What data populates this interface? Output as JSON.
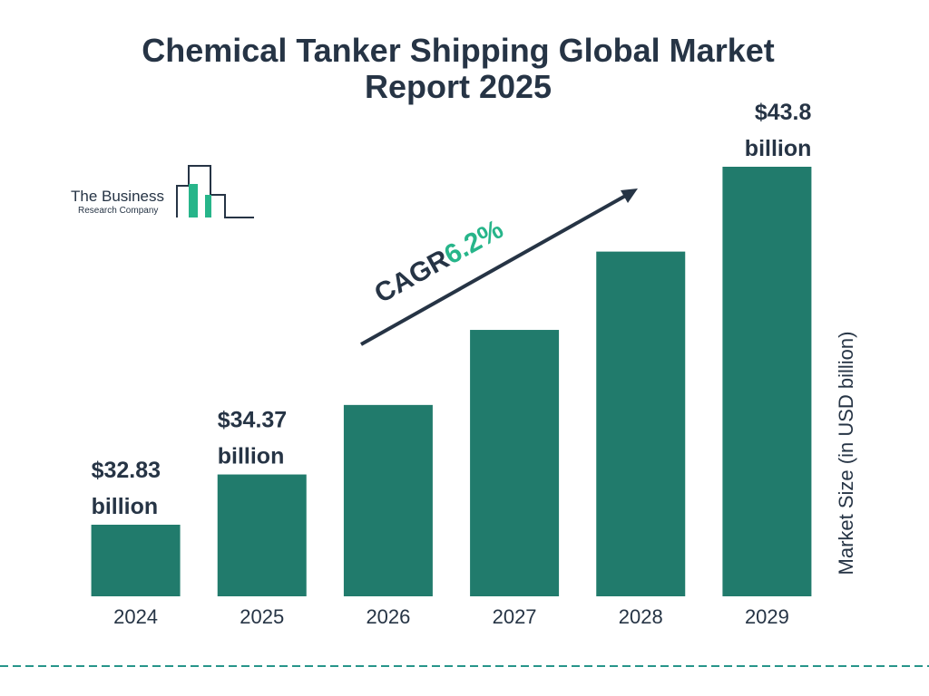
{
  "chart_data": {
    "type": "bar",
    "title": "Chemical Tanker Shipping Global Market Report 2025",
    "categories": [
      "2024",
      "2025",
      "2026",
      "2027",
      "2028",
      "2029"
    ],
    "values": [
      32.83,
      34.37,
      36.5,
      38.8,
      41.2,
      43.8
    ],
    "value_labels": [
      "$32.83 billion",
      "$34.37 billion",
      null,
      null,
      null,
      "$43.8 billion"
    ],
    "color": "#217b6c",
    "y_label": "Market Size (in USD billion)",
    "annotation": {
      "label": "CAGR",
      "value": "6.2%"
    },
    "logo": {
      "line1": "The Business",
      "line2": "Research Company"
    }
  }
}
